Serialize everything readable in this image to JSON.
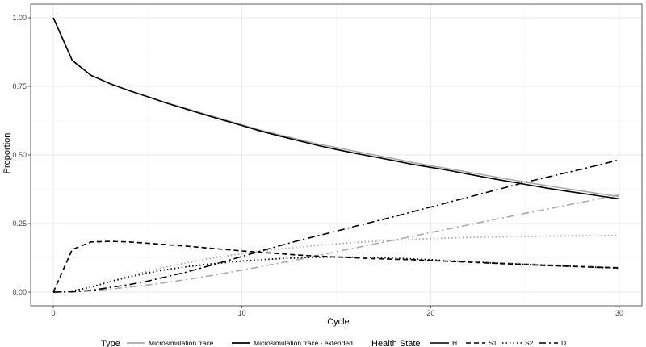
{
  "chart_data": {
    "type": "line",
    "xlabel": "Cycle",
    "ylabel": "Proportion",
    "xlim": [
      -1.2,
      31.2
    ],
    "ylim": [
      -0.05,
      1.05
    ],
    "x_ticks": [
      0,
      10,
      20,
      30
    ],
    "x_tick_labels": [
      "0",
      "10",
      "20",
      "30"
    ],
    "y_ticks": [
      0,
      0.25,
      0.5,
      0.75,
      1.0
    ],
    "y_tick_labels": [
      "0.00",
      "0.25",
      "0.50",
      "0.75",
      "1.00"
    ],
    "grid": true,
    "legend": {
      "position": "bottom",
      "type_title": "Type",
      "type_entries": [
        {
          "label": "Microsimulation trace",
          "color": "#aaaaaa"
        },
        {
          "label": "Microsimulation trace - extended",
          "color": "#000000"
        }
      ],
      "state_title": "Health State",
      "state_entries": [
        {
          "label": "H",
          "dash": "solid"
        },
        {
          "label": "S1",
          "dash": "dashed"
        },
        {
          "label": "S2",
          "dash": "dotted"
        },
        {
          "label": "D",
          "dash": "dashdot"
        }
      ]
    },
    "x": [
      0,
      1,
      2,
      3,
      4,
      5,
      6,
      7,
      8,
      9,
      10,
      11,
      12,
      13,
      14,
      15,
      16,
      17,
      18,
      19,
      20,
      21,
      22,
      23,
      24,
      25,
      26,
      27,
      28,
      29,
      30
    ],
    "series": [
      {
        "name": "H",
        "type": "Microsimulation trace",
        "dash": "solid",
        "color": "#aaaaaa",
        "values": [
          1.0,
          0.845,
          0.79,
          0.76,
          0.735,
          0.713,
          0.69,
          0.67,
          0.65,
          0.63,
          0.61,
          0.59,
          0.573,
          0.557,
          0.54,
          0.527,
          0.513,
          0.5,
          0.487,
          0.473,
          0.461,
          0.449,
          0.437,
          0.425,
          0.413,
          0.401,
          0.39,
          0.379,
          0.369,
          0.358,
          0.348
        ]
      },
      {
        "name": "S1",
        "type": "Microsimulation trace",
        "dash": "dashed",
        "color": "#aaaaaa",
        "values": [
          0.0,
          0.155,
          0.183,
          0.185,
          0.183,
          0.178,
          0.173,
          0.168,
          0.162,
          0.156,
          0.15,
          0.145,
          0.14,
          0.135,
          0.131,
          0.128,
          0.125,
          0.122,
          0.12,
          0.118,
          0.116,
          0.113,
          0.111,
          0.108,
          0.106,
          0.103,
          0.1,
          0.098,
          0.095,
          0.092,
          0.09
        ]
      },
      {
        "name": "S2",
        "type": "Microsimulation trace",
        "dash": "dotted",
        "color": "#aaaaaa",
        "values": [
          0.0,
          0.004,
          0.018,
          0.038,
          0.058,
          0.076,
          0.092,
          0.106,
          0.119,
          0.13,
          0.14,
          0.149,
          0.157,
          0.164,
          0.17,
          0.176,
          0.181,
          0.185,
          0.189,
          0.192,
          0.195,
          0.197,
          0.199,
          0.201,
          0.202,
          0.203,
          0.204,
          0.205,
          0.205,
          0.206,
          0.206
        ]
      },
      {
        "name": "D",
        "type": "Microsimulation trace",
        "dash": "dashdot",
        "color": "#aaaaaa",
        "values": [
          0.0,
          0.001,
          0.005,
          0.011,
          0.018,
          0.026,
          0.035,
          0.045,
          0.056,
          0.068,
          0.08,
          0.093,
          0.106,
          0.119,
          0.133,
          0.147,
          0.161,
          0.175,
          0.189,
          0.203,
          0.217,
          0.231,
          0.245,
          0.259,
          0.273,
          0.287,
          0.3,
          0.314,
          0.327,
          0.341,
          0.355
        ]
      },
      {
        "name": "H",
        "type": "Microsimulation trace - extended",
        "dash": "solid",
        "color": "#000000",
        "values": [
          1.0,
          0.845,
          0.79,
          0.76,
          0.735,
          0.712,
          0.689,
          0.668,
          0.647,
          0.627,
          0.607,
          0.587,
          0.569,
          0.552,
          0.535,
          0.52,
          0.506,
          0.493,
          0.48,
          0.466,
          0.455,
          0.443,
          0.43,
          0.417,
          0.405,
          0.393,
          0.381,
          0.37,
          0.36,
          0.35,
          0.34
        ]
      },
      {
        "name": "S1",
        "type": "Microsimulation trace - extended",
        "dash": "dashed",
        "color": "#000000",
        "values": [
          0.0,
          0.155,
          0.183,
          0.185,
          0.183,
          0.178,
          0.173,
          0.168,
          0.162,
          0.156,
          0.15,
          0.145,
          0.14,
          0.135,
          0.131,
          0.128,
          0.125,
          0.122,
          0.12,
          0.118,
          0.115,
          0.112,
          0.109,
          0.106,
          0.103,
          0.1,
          0.097,
          0.095,
          0.092,
          0.09,
          0.088
        ]
      },
      {
        "name": "S2",
        "type": "Microsimulation trace - extended",
        "dash": "dotted",
        "color": "#000000",
        "values": [
          0.0,
          0.004,
          0.018,
          0.038,
          0.055,
          0.07,
          0.082,
          0.092,
          0.1,
          0.107,
          0.113,
          0.118,
          0.122,
          0.125,
          0.127,
          0.128,
          0.127,
          0.126,
          0.124,
          0.121,
          0.118,
          0.114,
          0.111,
          0.107,
          0.104,
          0.101,
          0.098,
          0.095,
          0.093,
          0.09,
          0.087
        ]
      },
      {
        "name": "D",
        "type": "Microsimulation trace - extended",
        "dash": "dashdot",
        "color": "#000000",
        "values": [
          0.0,
          0.001,
          0.006,
          0.017,
          0.027,
          0.04,
          0.056,
          0.072,
          0.091,
          0.11,
          0.13,
          0.15,
          0.169,
          0.188,
          0.205,
          0.222,
          0.24,
          0.257,
          0.274,
          0.292,
          0.31,
          0.328,
          0.346,
          0.364,
          0.382,
          0.4,
          0.416,
          0.432,
          0.448,
          0.465,
          0.482
        ]
      }
    ]
  }
}
